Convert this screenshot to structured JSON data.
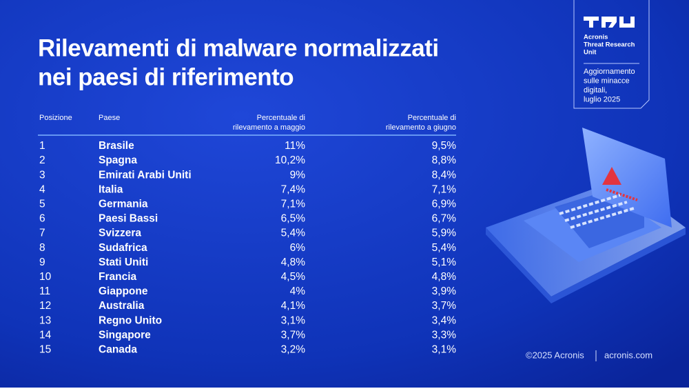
{
  "title": [
    "Rilevamenti di malware normalizzati",
    "nei paesi di riferimento"
  ],
  "table": {
    "headers": [
      [
        "Posizione"
      ],
      [
        "Paese"
      ],
      [
        "Percentuale di",
        "rilevamento a maggio"
      ],
      [
        "Percentuale di",
        "rilevamento a giugno"
      ]
    ],
    "rows": [
      [
        1,
        "Brasile",
        "11%",
        "9,5%"
      ],
      [
        2,
        "Spagna",
        "10,2%",
        "8,8%"
      ],
      [
        3,
        "Emirati Arabi Uniti",
        "9%",
        "8,4%"
      ],
      [
        4,
        "Italia",
        "7,4%",
        "7,1%"
      ],
      [
        5,
        "Germania",
        "7,1%",
        "6,9%"
      ],
      [
        6,
        "Paesi Bassi",
        "6,5%",
        "6,7%"
      ],
      [
        7,
        "Svizzera",
        "5,4%",
        "5,9%"
      ],
      [
        8,
        "Sudafrica",
        "6%",
        "5,4%"
      ],
      [
        9,
        "Stati Uniti",
        "4,8%",
        "5,1%"
      ],
      [
        10,
        "Francia",
        "4,5%",
        "4,8%"
      ],
      [
        11,
        "Giappone",
        "4%",
        "3,9%"
      ],
      [
        12,
        "Australia",
        "4,1%",
        "3,7%"
      ],
      [
        13,
        "Regno Unito",
        "3,1%",
        "3,4%"
      ],
      [
        14,
        "Singapore",
        "3,7%",
        "3,3%"
      ],
      [
        15,
        "Canada",
        "3,2%",
        "3,1%"
      ]
    ]
  },
  "badge": {
    "org": [
      "Acronis",
      "Threat Research",
      "Unit"
    ],
    "note": [
      "Aggiornamento",
      "sulle minacce",
      "digitali,",
      "luglio 2025"
    ]
  },
  "footer": {
    "copyright": "©2025 Acronis",
    "site": "acronis.com"
  }
}
